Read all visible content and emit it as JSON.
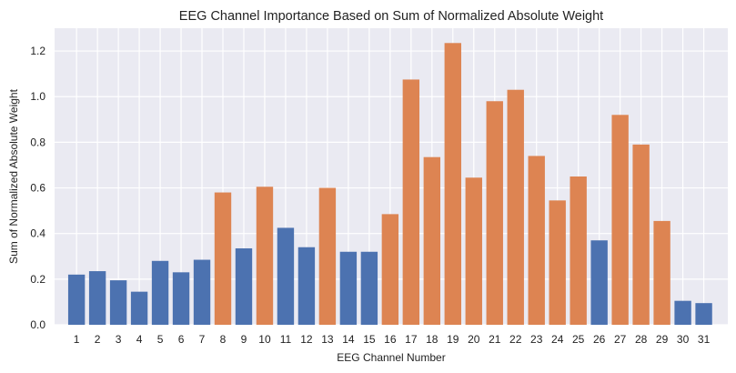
{
  "chart_data": {
    "type": "bar",
    "title": "EEG Channel Importance Based on Sum of Normalized Absolute Weight",
    "xlabel": "EEG Channel Number",
    "ylabel": "Sum of Normalized Absolute Weight",
    "ylim": [
      0,
      1.3
    ],
    "yticks": [
      "0.0",
      "0.2",
      "0.4",
      "0.6",
      "0.8",
      "1.0",
      "1.2"
    ],
    "grid": true,
    "categories": [
      "1",
      "2",
      "3",
      "4",
      "5",
      "6",
      "7",
      "8",
      "9",
      "10",
      "11",
      "12",
      "13",
      "14",
      "15",
      "16",
      "17",
      "18",
      "19",
      "20",
      "21",
      "22",
      "23",
      "24",
      "25",
      "26",
      "27",
      "28",
      "29",
      "30",
      "31"
    ],
    "values": [
      0.22,
      0.235,
      0.195,
      0.145,
      0.28,
      0.23,
      0.285,
      0.58,
      0.335,
      0.605,
      0.425,
      0.34,
      0.6,
      0.32,
      0.32,
      0.485,
      1.075,
      0.735,
      1.235,
      0.645,
      0.98,
      1.03,
      0.74,
      0.545,
      0.65,
      0.37,
      0.92,
      0.79,
      0.455,
      0.105,
      0.095
    ],
    "bar_colors": [
      "#4c72b0",
      "#4c72b0",
      "#4c72b0",
      "#4c72b0",
      "#4c72b0",
      "#4c72b0",
      "#4c72b0",
      "#dd8452",
      "#4c72b0",
      "#dd8452",
      "#4c72b0",
      "#4c72b0",
      "#dd8452",
      "#4c72b0",
      "#4c72b0",
      "#dd8452",
      "#dd8452",
      "#dd8452",
      "#dd8452",
      "#dd8452",
      "#dd8452",
      "#dd8452",
      "#dd8452",
      "#dd8452",
      "#dd8452",
      "#4c72b0",
      "#dd8452",
      "#dd8452",
      "#dd8452",
      "#4c72b0",
      "#4c72b0"
    ],
    "colors": {
      "background": "#eaeaf2",
      "grid": "#ffffff",
      "blue": "#4c72b0",
      "orange": "#dd8452"
    }
  }
}
